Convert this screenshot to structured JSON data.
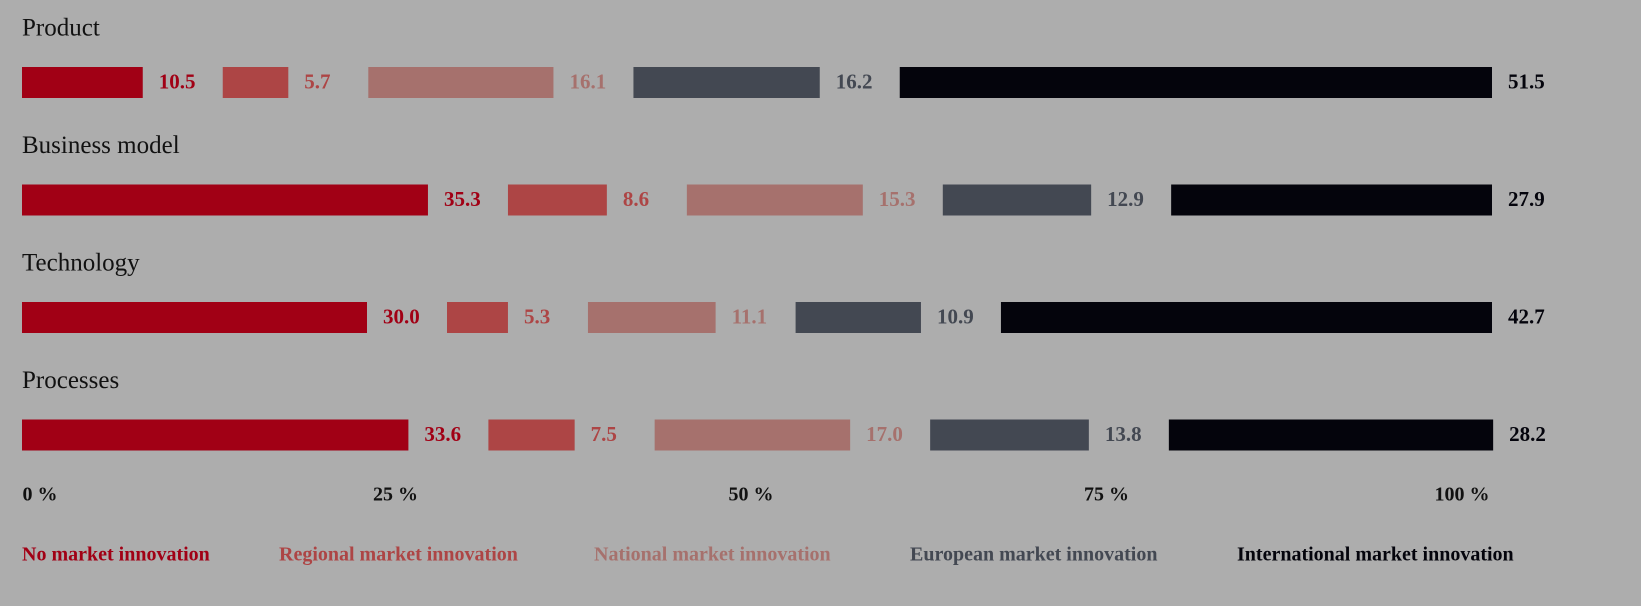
{
  "chart_data": {
    "type": "bar",
    "categories": [
      "Product",
      "Business model",
      "Technology",
      "Processes"
    ],
    "series": [
      {
        "name": "No market innovation",
        "color": "#a10015",
        "values": [
          10.5,
          35.3,
          30.0,
          33.6
        ],
        "value_labels": [
          "10.5",
          "35.3",
          "30.0",
          "33.6"
        ]
      },
      {
        "name": "Regional market innovation",
        "color": "#ad4545",
        "values": [
          5.7,
          8.6,
          5.3,
          7.5
        ],
        "value_labels": [
          "5.7",
          "8.6",
          "5.3",
          "7.5"
        ]
      },
      {
        "name": "National market innovation",
        "color": "#a6716d",
        "values": [
          16.1,
          15.3,
          11.1,
          17.0
        ],
        "value_labels": [
          "16.1",
          "15.3",
          "11.1",
          "17.0"
        ]
      },
      {
        "name": "European market innovation",
        "color": "#434852",
        "values": [
          16.2,
          12.9,
          10.9,
          13.8
        ],
        "value_labels": [
          "16.2",
          "12.9",
          "10.9",
          "13.8"
        ]
      },
      {
        "name": "International market innovation",
        "color": "#04040c",
        "values": [
          51.5,
          27.9,
          42.7,
          28.2
        ],
        "value_labels": [
          "51.5",
          "27.9",
          "42.7",
          "28.2"
        ]
      }
    ],
    "xlim": [
      0,
      100
    ],
    "xticks": [
      {
        "value": 0,
        "label": "0 %"
      },
      {
        "value": 25,
        "label": "25 %"
      },
      {
        "value": 50,
        "label": "50 %"
      },
      {
        "value": 75,
        "label": "75 %"
      },
      {
        "value": 100,
        "label": "100 %"
      }
    ]
  }
}
